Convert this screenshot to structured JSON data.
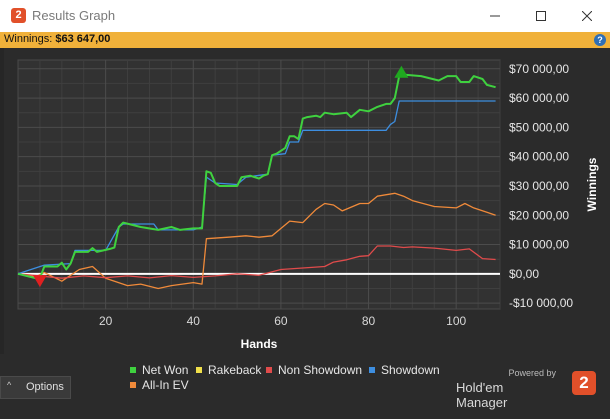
{
  "window": {
    "title": "Results Graph",
    "logo_glyph": "2"
  },
  "winnings_bar": {
    "label": "Winnings:",
    "value": "$63 647,00",
    "help_glyph": "?"
  },
  "chart_data": {
    "type": "line",
    "xlabel": "Hands",
    "ylabel": "Winnings",
    "xlim": [
      0,
      110
    ],
    "ylim": [
      -12000,
      73000
    ],
    "x_ticks": [
      20,
      40,
      60,
      80,
      100
    ],
    "y_ticks": [
      -10000,
      0,
      10000,
      20000,
      30000,
      40000,
      50000,
      60000,
      70000
    ],
    "y_tick_labels": [
      "-$10 000,00",
      "$0,00",
      "$10 000,00",
      "$20 000,00",
      "$30 000,00",
      "$40 000,00",
      "$50 000,00",
      "$60 000,00",
      "$70 000,00"
    ],
    "grid": true,
    "legend_position": "bottom",
    "series": [
      {
        "name": "Net Won",
        "color": "#3fd13f",
        "points": [
          [
            0,
            0
          ],
          [
            4,
            -1500
          ],
          [
            5,
            -1500
          ],
          [
            6,
            2500
          ],
          [
            9,
            2500
          ],
          [
            10,
            3800
          ],
          [
            11,
            1500
          ],
          [
            12,
            3500
          ],
          [
            13,
            7500
          ],
          [
            16,
            7500
          ],
          [
            17,
            8800
          ],
          [
            18,
            7500
          ],
          [
            21,
            8500
          ],
          [
            22,
            9000
          ],
          [
            23,
            16000
          ],
          [
            24,
            17500
          ],
          [
            28,
            16000
          ],
          [
            32,
            15000
          ],
          [
            35,
            16000
          ],
          [
            37,
            15000
          ],
          [
            40,
            15500
          ],
          [
            42,
            15500
          ],
          [
            43,
            35000
          ],
          [
            44,
            34500
          ],
          [
            45,
            31000
          ],
          [
            46,
            30000
          ],
          [
            50,
            30000
          ],
          [
            51,
            33000
          ],
          [
            53,
            33500
          ],
          [
            55,
            32500
          ],
          [
            56,
            33500
          ],
          [
            57,
            34000
          ],
          [
            58,
            40500
          ],
          [
            59,
            41000
          ],
          [
            61,
            43000
          ],
          [
            62,
            47000
          ],
          [
            63,
            47000
          ],
          [
            64,
            46000
          ],
          [
            65,
            53000
          ],
          [
            66,
            53500
          ],
          [
            68,
            54000
          ],
          [
            69,
            53500
          ],
          [
            70,
            55000
          ],
          [
            72,
            54500
          ],
          [
            75,
            55000
          ],
          [
            76,
            53500
          ],
          [
            78,
            56000
          ],
          [
            80,
            55500
          ],
          [
            82,
            57000
          ],
          [
            84,
            58000
          ],
          [
            85,
            58000
          ],
          [
            86,
            60000
          ],
          [
            87,
            67500
          ],
          [
            88,
            68000
          ],
          [
            92,
            67500
          ],
          [
            96,
            66000
          ],
          [
            98,
            67500
          ],
          [
            100,
            67500
          ],
          [
            101,
            65500
          ],
          [
            103,
            65500
          ],
          [
            104,
            67500
          ],
          [
            106,
            66500
          ],
          [
            107,
            64500
          ],
          [
            109,
            63700
          ]
        ]
      },
      {
        "name": "Rakeback",
        "color": "#f0e04a",
        "points": []
      },
      {
        "name": "Non Showdown",
        "color": "#e04b4b",
        "points": [
          [
            0,
            0
          ],
          [
            10,
            -1500
          ],
          [
            15,
            -700
          ],
          [
            20,
            -1300
          ],
          [
            25,
            -700
          ],
          [
            30,
            -1400
          ],
          [
            35,
            -600
          ],
          [
            40,
            -1200
          ],
          [
            45,
            -700
          ],
          [
            50,
            0
          ],
          [
            55,
            -500
          ],
          [
            60,
            1500
          ],
          [
            65,
            2000
          ],
          [
            70,
            2500
          ],
          [
            72,
            4000
          ],
          [
            75,
            4800
          ],
          [
            78,
            6000
          ],
          [
            80,
            6200
          ],
          [
            82,
            9500
          ],
          [
            85,
            9500
          ],
          [
            88,
            9000
          ],
          [
            90,
            9200
          ],
          [
            95,
            8800
          ],
          [
            100,
            8000
          ],
          [
            103,
            8500
          ],
          [
            106,
            5200
          ],
          [
            109,
            4900
          ]
        ]
      },
      {
        "name": "Showdown",
        "color": "#3d8ee0",
        "points": [
          [
            0,
            0
          ],
          [
            6,
            3000
          ],
          [
            12,
            3500
          ],
          [
            13,
            8000
          ],
          [
            20,
            8000
          ],
          [
            23,
            16000
          ],
          [
            24,
            17000
          ],
          [
            31,
            17000
          ],
          [
            32,
            15000
          ],
          [
            40,
            15000
          ],
          [
            42,
            16000
          ],
          [
            43,
            33000
          ],
          [
            45,
            31000
          ],
          [
            50,
            30500
          ],
          [
            52,
            33000
          ],
          [
            57,
            34000
          ],
          [
            58,
            40500
          ],
          [
            61,
            41000
          ],
          [
            62,
            45000
          ],
          [
            64,
            45000
          ],
          [
            65,
            49000
          ],
          [
            84,
            49000
          ],
          [
            85,
            51000
          ],
          [
            86,
            52000
          ],
          [
            87,
            59000
          ],
          [
            109,
            59000
          ]
        ]
      },
      {
        "name": "All-In EV",
        "color": "#f08a3a",
        "points": [
          [
            0,
            0
          ],
          [
            4,
            -1000
          ],
          [
            6,
            500
          ],
          [
            10,
            -2500
          ],
          [
            14,
            1500
          ],
          [
            17,
            2500
          ],
          [
            20,
            -1500
          ],
          [
            25,
            -4000
          ],
          [
            28,
            -3500
          ],
          [
            32,
            -5000
          ],
          [
            35,
            -4000
          ],
          [
            40,
            -3000
          ],
          [
            42,
            -3500
          ],
          [
            43,
            12000
          ],
          [
            48,
            12500
          ],
          [
            52,
            13000
          ],
          [
            55,
            12500
          ],
          [
            58,
            13000
          ],
          [
            62,
            18000
          ],
          [
            65,
            17500
          ],
          [
            68,
            22000
          ],
          [
            70,
            24000
          ],
          [
            72,
            23500
          ],
          [
            74,
            21500
          ],
          [
            78,
            24000
          ],
          [
            80,
            24000
          ],
          [
            82,
            26500
          ],
          [
            86,
            27500
          ],
          [
            88,
            26500
          ],
          [
            90,
            25000
          ],
          [
            95,
            23000
          ],
          [
            100,
            22500
          ],
          [
            102,
            24000
          ],
          [
            104,
            22500
          ],
          [
            107,
            21000
          ],
          [
            109,
            20000
          ]
        ]
      }
    ],
    "markers": [
      {
        "name": "Peak",
        "x": 87.5,
        "y": 69000,
        "shape": "triangle-up",
        "color": "#1fa81f"
      },
      {
        "name": "Low",
        "x": 5,
        "y": -2500,
        "shape": "triangle-down",
        "color": "#e02020"
      }
    ]
  },
  "legend": [
    {
      "label": "Net Won",
      "color": "#3fd13f"
    },
    {
      "label": "Rakeback",
      "color": "#f0e04a"
    },
    {
      "label": "Non Showdown",
      "color": "#e04b4b"
    },
    {
      "label": "Showdown",
      "color": "#3d8ee0"
    },
    {
      "label": "All-In EV",
      "color": "#f08a3a"
    }
  ],
  "options": {
    "label": "Options",
    "chevron_icon": "chevron-up-icon"
  },
  "brand": {
    "powered": "Powered by",
    "name": "Hold'em Manager",
    "logo_glyph": "2"
  }
}
